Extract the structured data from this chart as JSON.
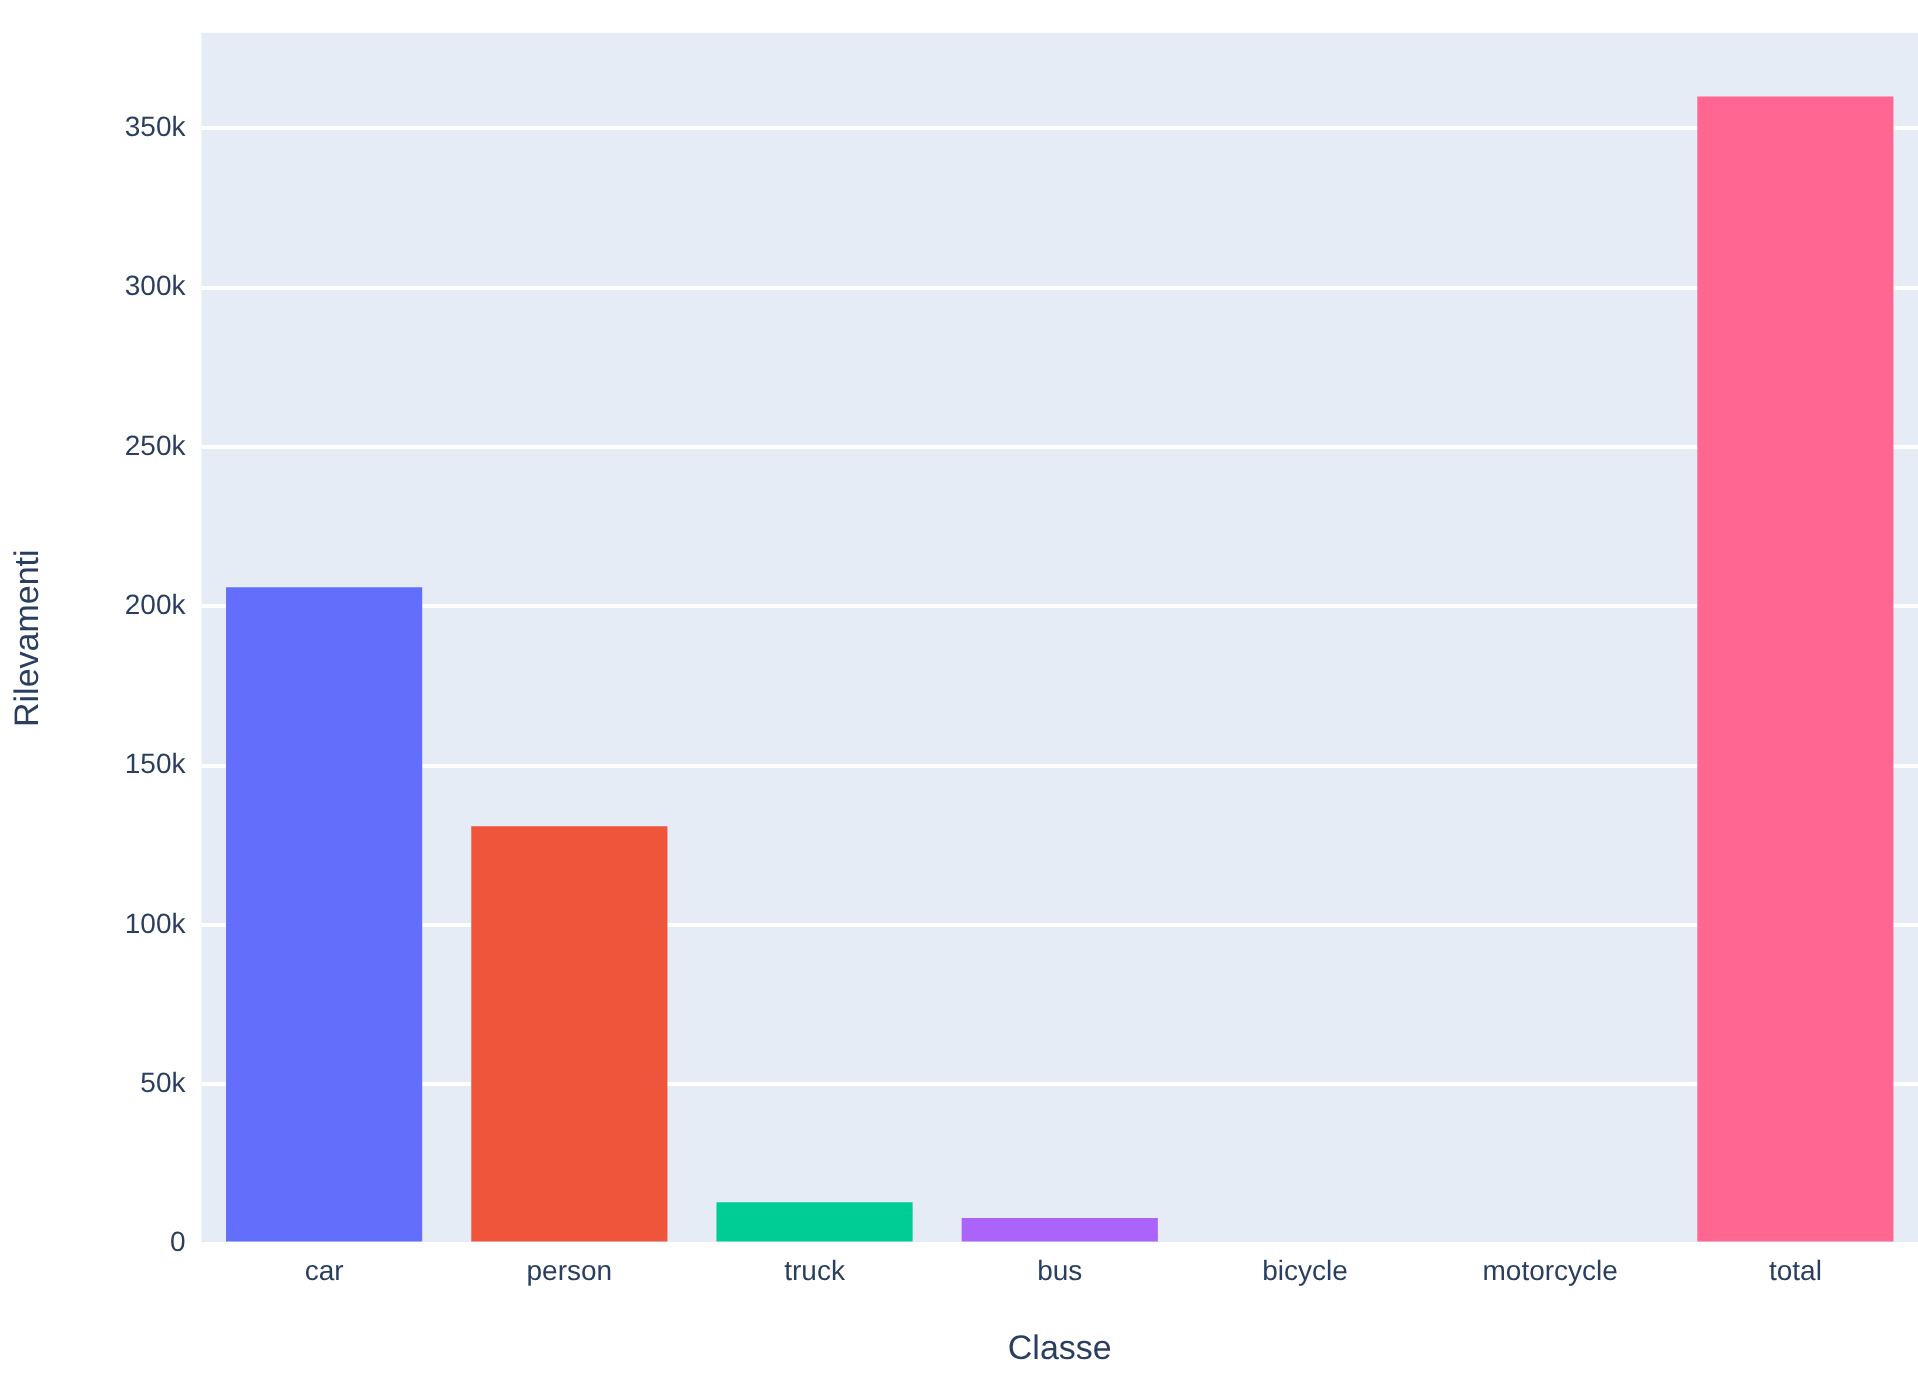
{
  "chart_data": {
    "type": "bar",
    "xlabel": "Classe",
    "ylabel": "Rilevamenti",
    "categories": [
      "car",
      "person",
      "truck",
      "bus",
      "bicycle",
      "motorcycle",
      "total"
    ],
    "values": [
      206000,
      131000,
      13000,
      8000,
      0,
      0,
      360000
    ],
    "colors": [
      "#636efa",
      "#ef553b",
      "#00cc96",
      "#ab63fa",
      "#ffa15a",
      "#19d3f3",
      "#ff6692"
    ],
    "ylim": [
      0,
      380000
    ],
    "yticks": [
      {
        "value": 0,
        "label": "0"
      },
      {
        "value": 50000,
        "label": "50k"
      },
      {
        "value": 100000,
        "label": "100k"
      },
      {
        "value": 150000,
        "label": "150k"
      },
      {
        "value": 200000,
        "label": "200k"
      },
      {
        "value": 250000,
        "label": "250k"
      },
      {
        "value": 300000,
        "label": "300k"
      },
      {
        "value": 350000,
        "label": "350k"
      }
    ],
    "grid": "y",
    "legend": false
  }
}
